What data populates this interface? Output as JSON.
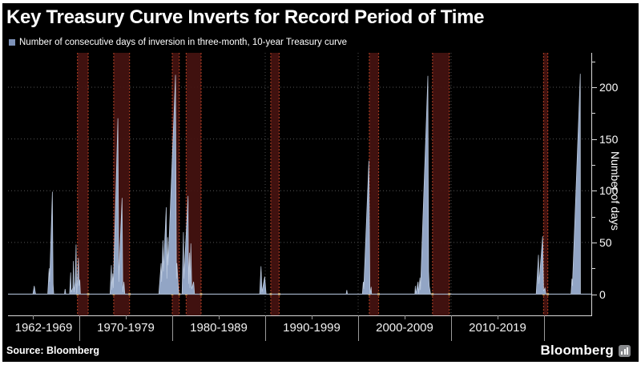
{
  "title": "Key Treasury Curve Inverts for Record Period of Time",
  "legend": {
    "label": "Number of consecutive days of inversion in three-month, 10-year Treasury curve",
    "marker_color": "#7d92b8"
  },
  "source": "Source: Bloomberg",
  "brand": {
    "label": "Bloomberg",
    "icon": "bar-chart-icon"
  },
  "chart_data": {
    "type": "area",
    "title": "Key Treasury Curve Inverts for Record Period of Time",
    "series_name": "Number of consecutive days of inversion in three-month, 10-year Treasury curve",
    "ylabel": "Number of days",
    "y_ticks": [
      0,
      50,
      100,
      150,
      200
    ],
    "y_minor_step": 25,
    "y_axis_max": 233,
    "ylim": [
      -20,
      233
    ],
    "xlim": [
      1962,
      2025.2
    ],
    "x_decade_labels": [
      "1962-1969",
      "1970-1979",
      "1980-1989",
      "1990-1999",
      "2000-2009",
      "2010-2019"
    ],
    "decade_boundaries": [
      1970,
      1980,
      1990,
      2000,
      2010,
      2020
    ],
    "mid_decade_ticks": [
      1965,
      1975,
      1985,
      1995,
      2005,
      2015
    ],
    "grid": "dotted",
    "legend_position": "top-left",
    "points": [
      [
        1962.0,
        0
      ],
      [
        1965.0,
        0
      ],
      [
        1965.15,
        8
      ],
      [
        1965.3,
        0
      ],
      [
        1966.6,
        0
      ],
      [
        1966.75,
        25
      ],
      [
        1966.8,
        12
      ],
      [
        1967.1,
        99
      ],
      [
        1967.18,
        10
      ],
      [
        1967.25,
        0
      ],
      [
        1968.4,
        0
      ],
      [
        1968.47,
        5
      ],
      [
        1968.55,
        0
      ],
      [
        1968.95,
        0
      ],
      [
        1969.07,
        21
      ],
      [
        1969.12,
        2
      ],
      [
        1969.3,
        6
      ],
      [
        1969.37,
        32
      ],
      [
        1969.42,
        2
      ],
      [
        1969.55,
        12
      ],
      [
        1969.65,
        48
      ],
      [
        1969.72,
        0
      ],
      [
        1969.9,
        35
      ],
      [
        1969.98,
        8
      ],
      [
        1970.05,
        14
      ],
      [
        1970.12,
        0
      ],
      [
        1973.3,
        0
      ],
      [
        1973.45,
        28
      ],
      [
        1973.5,
        4
      ],
      [
        1973.6,
        20
      ],
      [
        1973.65,
        6
      ],
      [
        1974.15,
        170
      ],
      [
        1974.25,
        12
      ],
      [
        1974.35,
        40
      ],
      [
        1974.6,
        93
      ],
      [
        1974.68,
        2
      ],
      [
        1974.8,
        12
      ],
      [
        1974.9,
        0
      ],
      [
        1978.55,
        0
      ],
      [
        1978.8,
        30
      ],
      [
        1978.85,
        12
      ],
      [
        1979.0,
        52
      ],
      [
        1979.05,
        22
      ],
      [
        1979.35,
        84
      ],
      [
        1979.42,
        15
      ],
      [
        1979.5,
        55
      ],
      [
        1979.55,
        28
      ],
      [
        1980.35,
        212
      ],
      [
        1980.45,
        15
      ],
      [
        1980.5,
        30
      ],
      [
        1980.7,
        0
      ],
      [
        1981.05,
        0
      ],
      [
        1981.2,
        60
      ],
      [
        1981.25,
        15
      ],
      [
        1981.7,
        95
      ],
      [
        1981.75,
        10
      ],
      [
        1981.85,
        40
      ],
      [
        1981.9,
        6
      ],
      [
        1982.0,
        49
      ],
      [
        1982.1,
        5
      ],
      [
        1982.3,
        12
      ],
      [
        1982.4,
        0
      ],
      [
        1989.4,
        0
      ],
      [
        1989.55,
        27
      ],
      [
        1989.65,
        2
      ],
      [
        1989.95,
        17
      ],
      [
        1990.1,
        0
      ],
      [
        1998.7,
        0
      ],
      [
        1998.78,
        4
      ],
      [
        1998.85,
        0
      ],
      [
        2000.45,
        0
      ],
      [
        2000.55,
        12
      ],
      [
        2000.6,
        5
      ],
      [
        2001.15,
        129
      ],
      [
        2001.27,
        0
      ],
      [
        2001.4,
        7
      ],
      [
        2001.45,
        0
      ],
      [
        2006.1,
        0
      ],
      [
        2006.15,
        8
      ],
      [
        2006.2,
        0
      ],
      [
        2006.45,
        12
      ],
      [
        2006.5,
        0
      ],
      [
        2006.65,
        16
      ],
      [
        2006.7,
        4
      ],
      [
        2007.5,
        211
      ],
      [
        2007.58,
        22
      ],
      [
        2007.65,
        8
      ],
      [
        2007.8,
        0
      ],
      [
        2019.15,
        0
      ],
      [
        2019.4,
        38
      ],
      [
        2019.45,
        10
      ],
      [
        2019.85,
        56
      ],
      [
        2019.95,
        3
      ],
      [
        2020.1,
        6
      ],
      [
        2020.2,
        0
      ],
      [
        2022.9,
        0
      ],
      [
        2023.0,
        15
      ],
      [
        2023.05,
        8
      ],
      [
        2023.9,
        213
      ],
      [
        2023.92,
        0
      ]
    ],
    "recession_bands": [
      [
        1969.8,
        1970.95
      ],
      [
        1973.7,
        1975.4
      ],
      [
        1980.0,
        1980.75
      ],
      [
        1981.5,
        1983.1
      ],
      [
        1990.6,
        1991.5
      ],
      [
        2001.2,
        2002.2
      ],
      [
        2008.0,
        2009.8
      ],
      [
        2019.95,
        2020.4
      ]
    ],
    "colors": {
      "background": "#000000",
      "text": "#ffffff",
      "area_fill": "#92a5c5",
      "area_edge": "#c2cfe2",
      "recession_fill": "#451210",
      "recession_edge": "#a03a20",
      "recession_dot": "#d08a30",
      "grid": "#555555",
      "axis": "#d9d9d9",
      "zero_line": "#9fadc2"
    }
  }
}
